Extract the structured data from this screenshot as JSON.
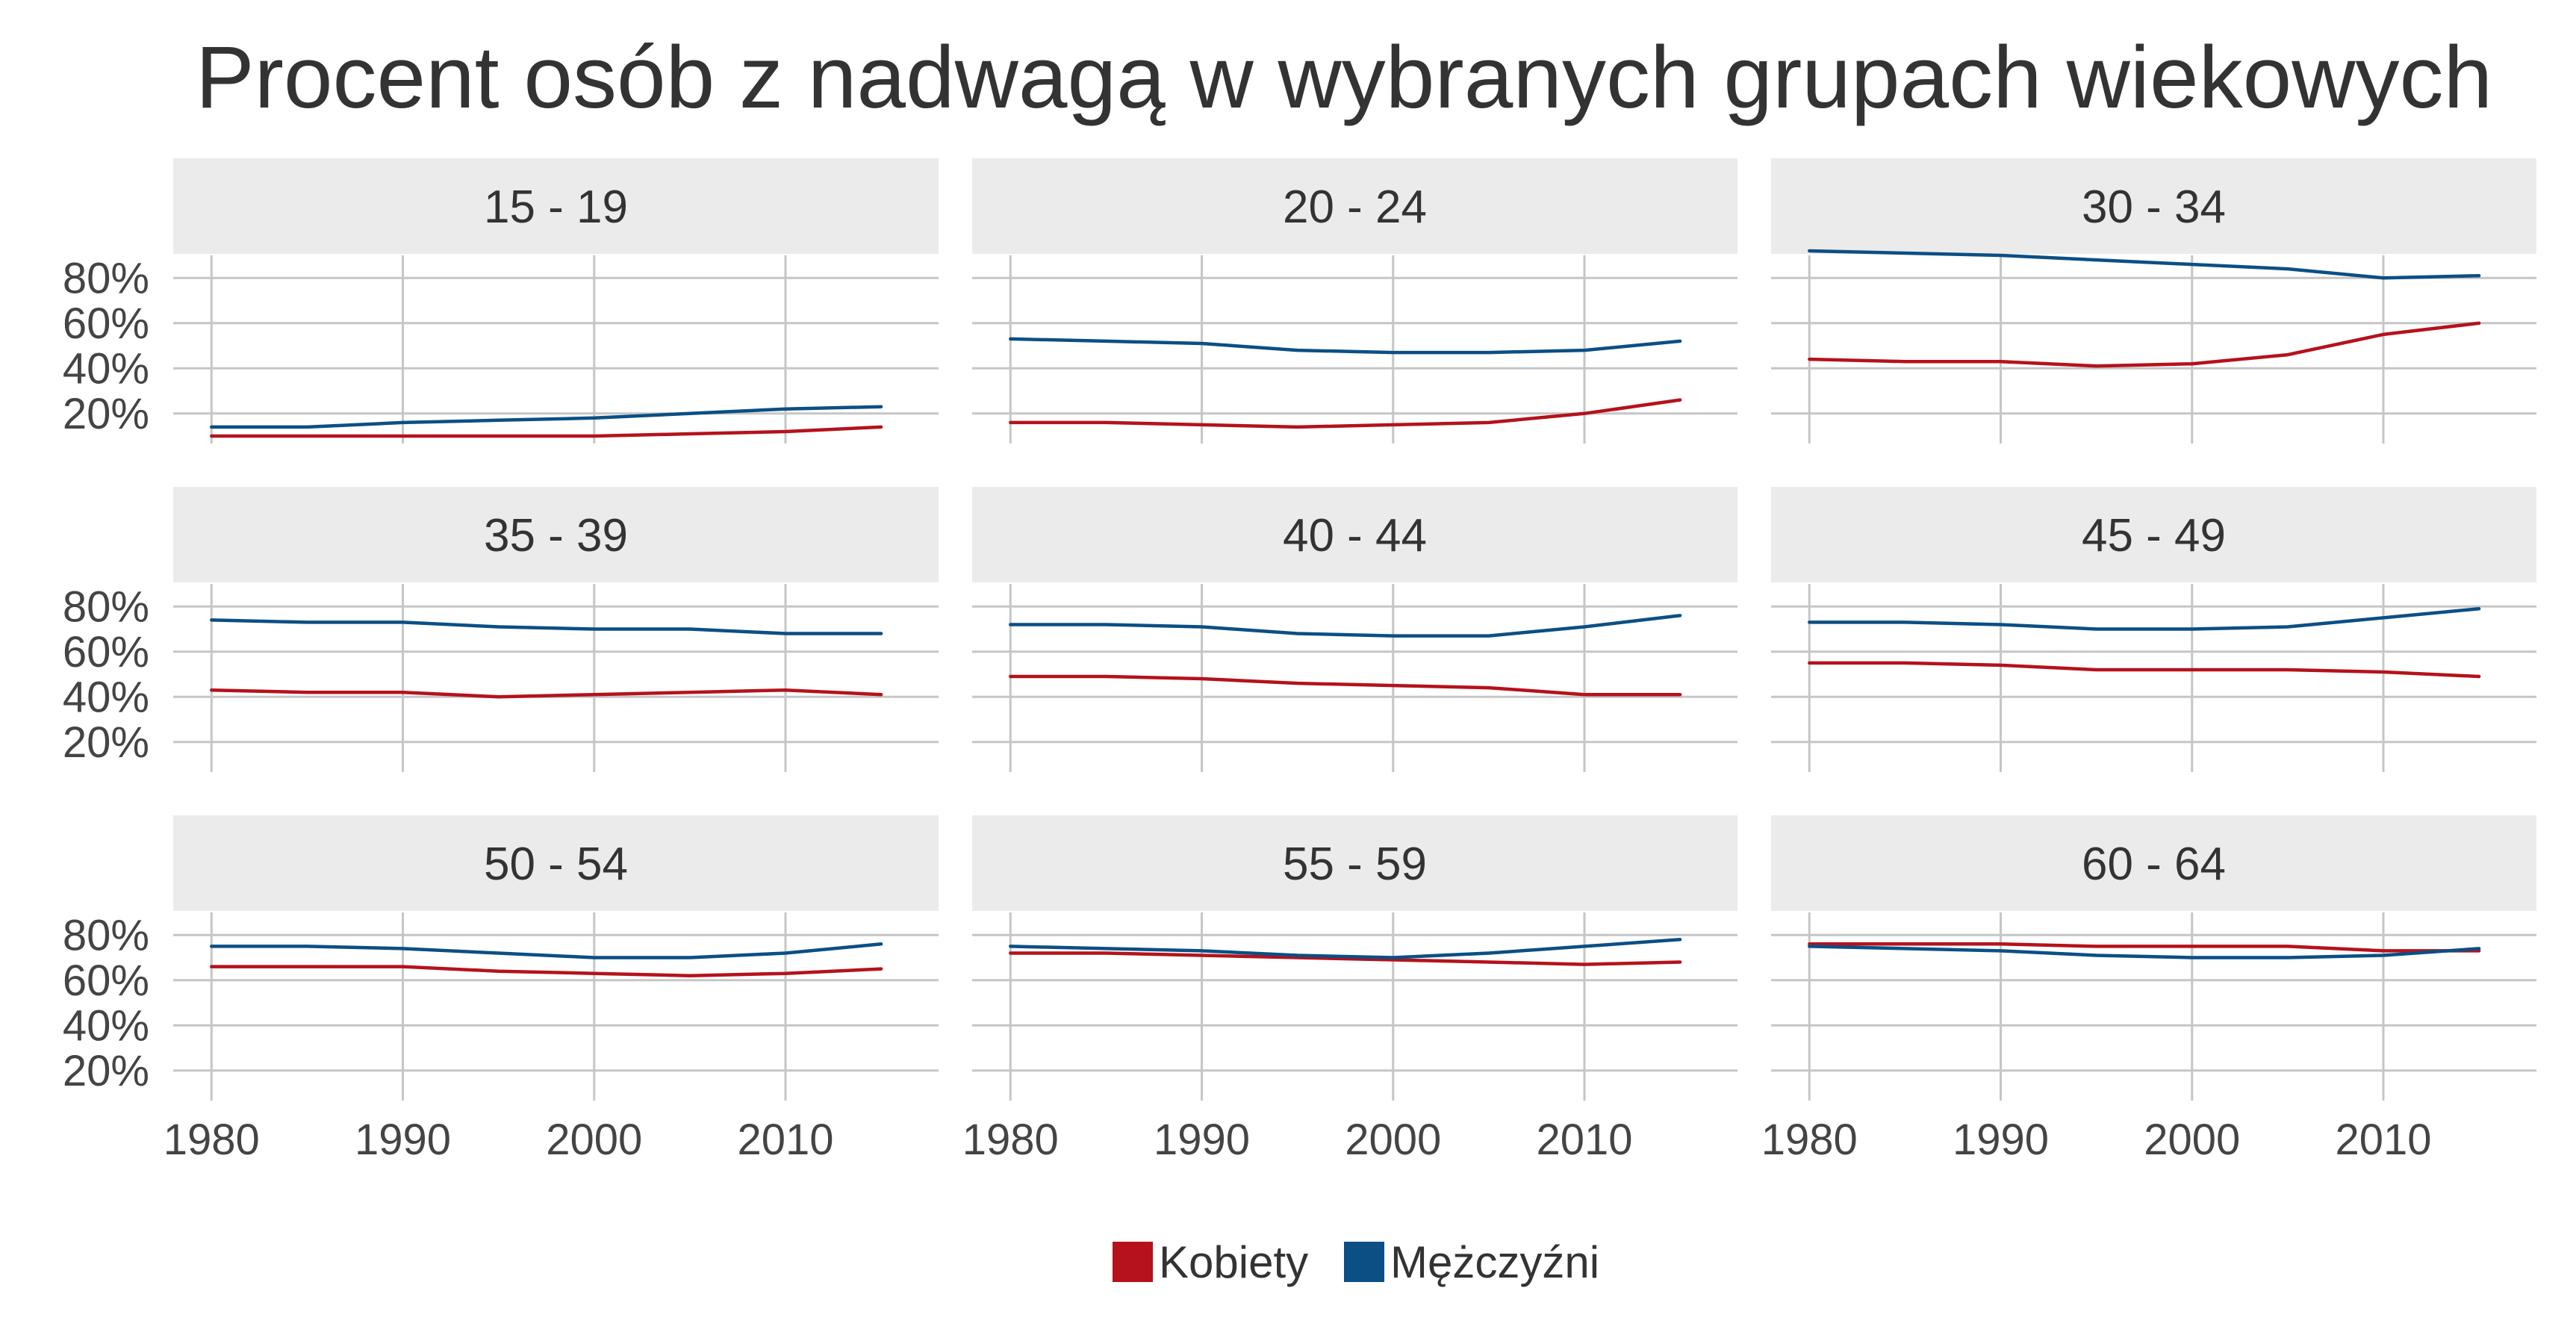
{
  "colors": {
    "kobiety": "#b5121b",
    "mezczyzni": "#0b4f85",
    "strip_bg": "#ebebeb",
    "grid": "#c6c6c6",
    "text": "#333333",
    "axis_text": "#444444"
  },
  "chart_data": {
    "type": "line",
    "title": "Procent osób z nadwagą w wybranych grupach wiekowych",
    "xlabel": "",
    "ylabel": "",
    "x_ticks": [
      1980,
      1990,
      2000,
      2010
    ],
    "y_ticks": [
      20,
      40,
      60,
      80
    ],
    "y_tick_labels": [
      "20%",
      "40%",
      "60%",
      "80%"
    ],
    "xlim": [
      1978,
      2018
    ],
    "ylim": [
      10,
      90
    ],
    "grid": true,
    "legend": "bottom",
    "legend_entries": [
      {
        "key": "kobiety",
        "label": "Kobiety"
      },
      {
        "key": "mezczyzni",
        "label": "Mężczyźni"
      }
    ],
    "x": [
      1980,
      1985,
      1990,
      1995,
      2000,
      2005,
      2010,
      2015
    ],
    "panels": [
      {
        "label": "15 - 19",
        "kobiety": [
          10,
          10,
          10,
          10,
          10,
          11,
          12,
          14
        ],
        "mezczyzni": [
          14,
          14,
          16,
          17,
          18,
          20,
          22,
          23
        ]
      },
      {
        "label": "20 - 24",
        "kobiety": [
          16,
          16,
          15,
          14,
          15,
          16,
          20,
          26
        ],
        "mezczyzni": [
          53,
          52,
          51,
          48,
          47,
          47,
          48,
          52
        ]
      },
      {
        "label": "30 - 34",
        "kobiety": [
          44,
          43,
          43,
          41,
          42,
          46,
          55,
          60
        ],
        "mezczyzni": [
          92,
          91,
          90,
          88,
          86,
          84,
          80,
          81
        ]
      },
      {
        "label": "35 - 39",
        "kobiety": [
          43,
          42,
          42,
          40,
          41,
          42,
          43,
          41
        ],
        "mezczyzni": [
          74,
          73,
          73,
          71,
          70,
          70,
          68,
          68
        ]
      },
      {
        "label": "40 - 44",
        "kobiety": [
          49,
          49,
          48,
          46,
          45,
          44,
          41,
          41
        ],
        "mezczyzni": [
          72,
          72,
          71,
          68,
          67,
          67,
          71,
          76
        ]
      },
      {
        "label": "45 - 49",
        "kobiety": [
          55,
          55,
          54,
          52,
          52,
          52,
          51,
          49
        ],
        "mezczyzni": [
          73,
          73,
          72,
          70,
          70,
          71,
          75,
          79
        ]
      },
      {
        "label": "50 - 54",
        "kobiety": [
          66,
          66,
          66,
          64,
          63,
          62,
          63,
          65
        ],
        "mezczyzni": [
          75,
          75,
          74,
          72,
          70,
          70,
          72,
          76
        ]
      },
      {
        "label": "55 - 59",
        "kobiety": [
          72,
          72,
          71,
          70,
          69,
          68,
          67,
          68
        ],
        "mezczyzni": [
          75,
          74,
          73,
          71,
          70,
          72,
          75,
          78
        ]
      },
      {
        "label": "60 - 64",
        "kobiety": [
          76,
          76,
          76,
          75,
          75,
          75,
          73,
          73
        ],
        "mezczyzni": [
          75,
          74,
          73,
          71,
          70,
          70,
          71,
          74
        ]
      }
    ]
  }
}
